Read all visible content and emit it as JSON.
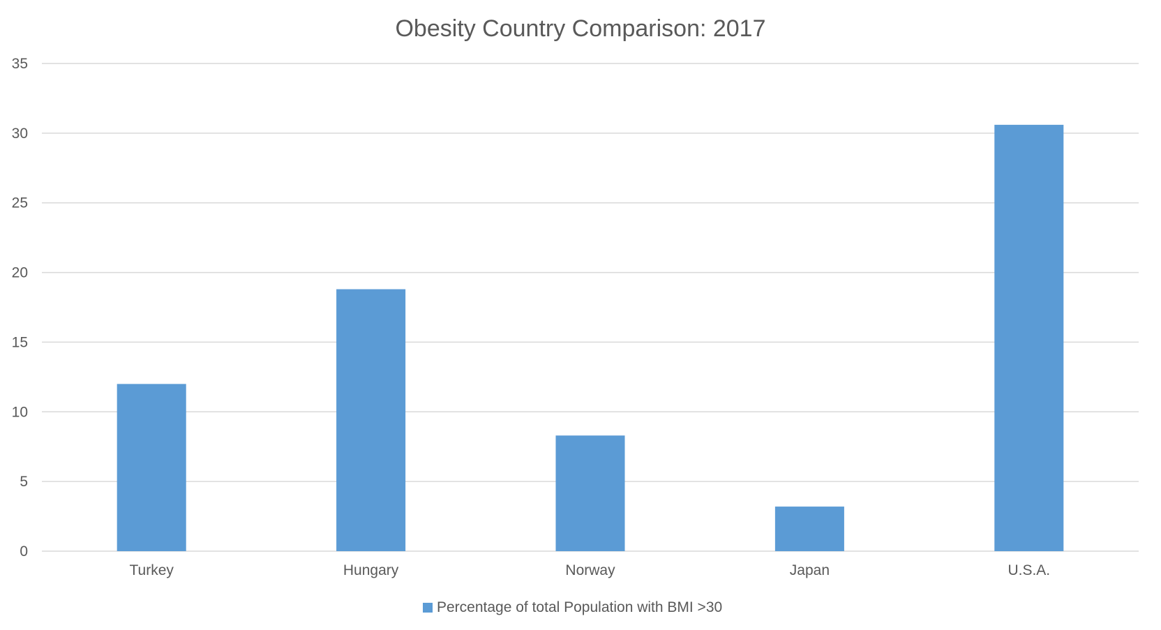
{
  "chart_data": {
    "type": "bar",
    "title": "Obesity Country Comparison: 2017",
    "categories": [
      "Turkey",
      "Hungary",
      "Norway",
      "Japan",
      "U.S.A."
    ],
    "series": [
      {
        "name": "Percentage of total Population with BMI >30",
        "values": [
          12.0,
          18.8,
          8.3,
          3.2,
          30.6
        ],
        "color": "#5b9bd5"
      }
    ],
    "xlabel": "",
    "ylabel": "",
    "ylim": [
      0,
      35
    ],
    "yticks": [
      0,
      5,
      10,
      15,
      20,
      25,
      30,
      35
    ],
    "grid": true,
    "legend_position": "bottom"
  }
}
